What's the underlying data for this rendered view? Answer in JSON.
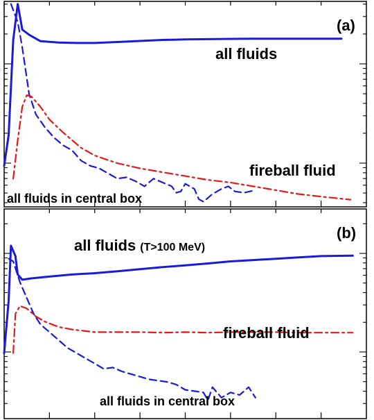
{
  "chart_data": [
    {
      "type": "line",
      "panel_label": "(a)",
      "x_scale": "linear",
      "y_scale": "log",
      "xlim": [
        0,
        8
      ],
      "ylim": [
        0,
        8
      ],
      "grid": false,
      "annotations": [
        {
          "text": "all fluids",
          "series": "all_fluids"
        },
        {
          "text": "fireball fluid",
          "series": "fireball_fluid"
        },
        {
          "text": "all fluids in central box",
          "series": "central_box"
        }
      ],
      "series": [
        {
          "key": "all_fluids",
          "style": "solid",
          "color": "#1a1adb",
          "points": [
            [
              0.0,
              1.6
            ],
            [
              0.1,
              2.8
            ],
            [
              0.2,
              6.5
            ],
            [
              0.3,
              7.9
            ],
            [
              0.4,
              6.9
            ],
            [
              0.55,
              6.7
            ],
            [
              0.8,
              6.45
            ],
            [
              1.2,
              6.4
            ],
            [
              1.6,
              6.38
            ],
            [
              2.0,
              6.38
            ],
            [
              2.5,
              6.42
            ],
            [
              3.0,
              6.46
            ],
            [
              3.5,
              6.5
            ],
            [
              4.0,
              6.52
            ],
            [
              4.5,
              6.53
            ],
            [
              5.0,
              6.54
            ],
            [
              5.5,
              6.55
            ],
            [
              6.0,
              6.55
            ],
            [
              6.5,
              6.55
            ],
            [
              7.0,
              6.55
            ],
            [
              7.45,
              6.55
            ]
          ]
        },
        {
          "key": "central_box",
          "style": "dashed",
          "color": "#1a1adb",
          "points": [
            [
              0.15,
              7.9
            ],
            [
              0.3,
              7.2
            ],
            [
              0.4,
              6.2
            ],
            [
              0.55,
              4.4
            ],
            [
              0.7,
              3.6
            ],
            [
              0.9,
              3.1
            ],
            [
              1.1,
              2.7
            ],
            [
              1.3,
              2.4
            ],
            [
              1.5,
              2.2
            ],
            [
              1.7,
              1.8
            ],
            [
              1.9,
              1.6
            ],
            [
              2.1,
              1.5
            ],
            [
              2.3,
              1.3
            ],
            [
              2.5,
              1.1
            ],
            [
              2.7,
              1.15
            ],
            [
              2.9,
              1.0
            ],
            [
              3.1,
              0.8
            ],
            [
              3.3,
              1.1
            ],
            [
              3.5,
              0.95
            ],
            [
              3.7,
              0.8
            ],
            [
              3.8,
              0.55
            ],
            [
              3.9,
              0.6
            ],
            [
              4.0,
              0.9
            ],
            [
              4.2,
              0.7
            ],
            [
              4.3,
              0.3
            ],
            [
              4.4,
              0.2
            ],
            [
              4.6,
              0.5
            ],
            [
              4.8,
              0.7
            ],
            [
              4.95,
              0.8
            ],
            [
              5.1,
              0.6
            ],
            [
              5.3,
              0.55
            ],
            [
              5.55,
              0.65
            ]
          ]
        },
        {
          "key": "fireball_fluid",
          "style": "dash-dot",
          "color": "#e01a1a",
          "points": [
            [
              0.2,
              1.1
            ],
            [
              0.3,
              2.6
            ],
            [
              0.4,
              3.9
            ],
            [
              0.5,
              4.35
            ],
            [
              0.6,
              4.3
            ],
            [
              0.8,
              3.9
            ],
            [
              1.0,
              3.4
            ],
            [
              1.3,
              2.9
            ],
            [
              1.7,
              2.3
            ],
            [
              2.0,
              2.0
            ],
            [
              2.5,
              1.7
            ],
            [
              3.0,
              1.5
            ],
            [
              3.5,
              1.35
            ],
            [
              4.0,
              1.2
            ],
            [
              4.5,
              1.05
            ],
            [
              5.0,
              0.95
            ],
            [
              5.5,
              0.8
            ],
            [
              6.0,
              0.65
            ],
            [
              6.5,
              0.5
            ],
            [
              7.0,
              0.4
            ],
            [
              7.65,
              0.28
            ]
          ]
        }
      ]
    },
    {
      "type": "line",
      "panel_label": "(b)",
      "x_scale": "linear",
      "y_scale": "log",
      "xlim": [
        0,
        8
      ],
      "ylim": [
        0,
        8
      ],
      "grid": false,
      "annotations": [
        {
          "text": "all fluids",
          "suffix": "(T>100 MeV)",
          "series": "all_fluids"
        },
        {
          "text": "fireball fluid",
          "series": "fireball_fluid"
        },
        {
          "text": "all fluids in central box",
          "series": "central_box"
        }
      ],
      "series": [
        {
          "key": "all_fluids",
          "style": "solid",
          "color": "#1a1adb",
          "points": [
            [
              0.0,
              2.5
            ],
            [
              0.1,
              4.5
            ],
            [
              0.15,
              6.6
            ],
            [
              0.25,
              6.2
            ],
            [
              0.3,
              5.5
            ],
            [
              0.4,
              5.3
            ],
            [
              0.6,
              5.35
            ],
            [
              1.0,
              5.42
            ],
            [
              1.5,
              5.5
            ],
            [
              2.0,
              5.55
            ],
            [
              2.5,
              5.62
            ],
            [
              3.0,
              5.7
            ],
            [
              3.5,
              5.78
            ],
            [
              4.0,
              5.85
            ],
            [
              4.5,
              5.92
            ],
            [
              5.0,
              6.0
            ],
            [
              5.5,
              6.05
            ],
            [
              6.0,
              6.1
            ],
            [
              6.5,
              6.15
            ],
            [
              7.0,
              6.2
            ],
            [
              7.7,
              6.22
            ]
          ]
        },
        {
          "key": "central_box",
          "style": "dashed",
          "color": "#1a1adb",
          "points": [
            [
              0.1,
              6.1
            ],
            [
              0.2,
              6.0
            ],
            [
              0.35,
              5.2
            ],
            [
              0.5,
              4.6
            ],
            [
              0.65,
              4.0
            ],
            [
              0.8,
              3.6
            ],
            [
              1.0,
              3.3
            ],
            [
              1.2,
              3.0
            ],
            [
              1.4,
              2.7
            ],
            [
              1.6,
              2.5
            ],
            [
              1.8,
              2.3
            ],
            [
              2.0,
              2.1
            ],
            [
              2.2,
              1.9
            ],
            [
              2.4,
              1.95
            ],
            [
              2.6,
              1.8
            ],
            [
              2.8,
              1.7
            ],
            [
              3.0,
              1.6
            ],
            [
              3.2,
              1.5
            ],
            [
              3.4,
              1.45
            ],
            [
              3.6,
              1.4
            ],
            [
              3.8,
              1.3
            ],
            [
              4.0,
              1.1
            ],
            [
              4.2,
              1.05
            ],
            [
              4.4,
              1.0
            ],
            [
              4.5,
              0.7
            ],
            [
              4.6,
              1.2
            ],
            [
              4.8,
              0.8
            ],
            [
              5.0,
              1.0
            ],
            [
              5.2,
              0.9
            ],
            [
              5.4,
              1.2
            ],
            [
              5.55,
              0.8
            ]
          ]
        },
        {
          "key": "fireball_fluid",
          "style": "dash-dot",
          "color": "#e01a1a",
          "points": [
            [
              0.2,
              2.5
            ],
            [
              0.25,
              4.0
            ],
            [
              0.35,
              4.3
            ],
            [
              0.5,
              4.2
            ],
            [
              0.7,
              3.9
            ],
            [
              0.9,
              3.7
            ],
            [
              1.2,
              3.5
            ],
            [
              1.5,
              3.4
            ],
            [
              2.0,
              3.3
            ],
            [
              2.5,
              3.3
            ],
            [
              3.0,
              3.3
            ],
            [
              3.5,
              3.28
            ],
            [
              4.0,
              3.3
            ],
            [
              4.5,
              3.28
            ],
            [
              5.0,
              3.3
            ],
            [
              5.5,
              3.3
            ],
            [
              6.0,
              3.3
            ],
            [
              6.5,
              3.28
            ],
            [
              7.0,
              3.28
            ],
            [
              7.7,
              3.28
            ]
          ]
        }
      ]
    }
  ]
}
